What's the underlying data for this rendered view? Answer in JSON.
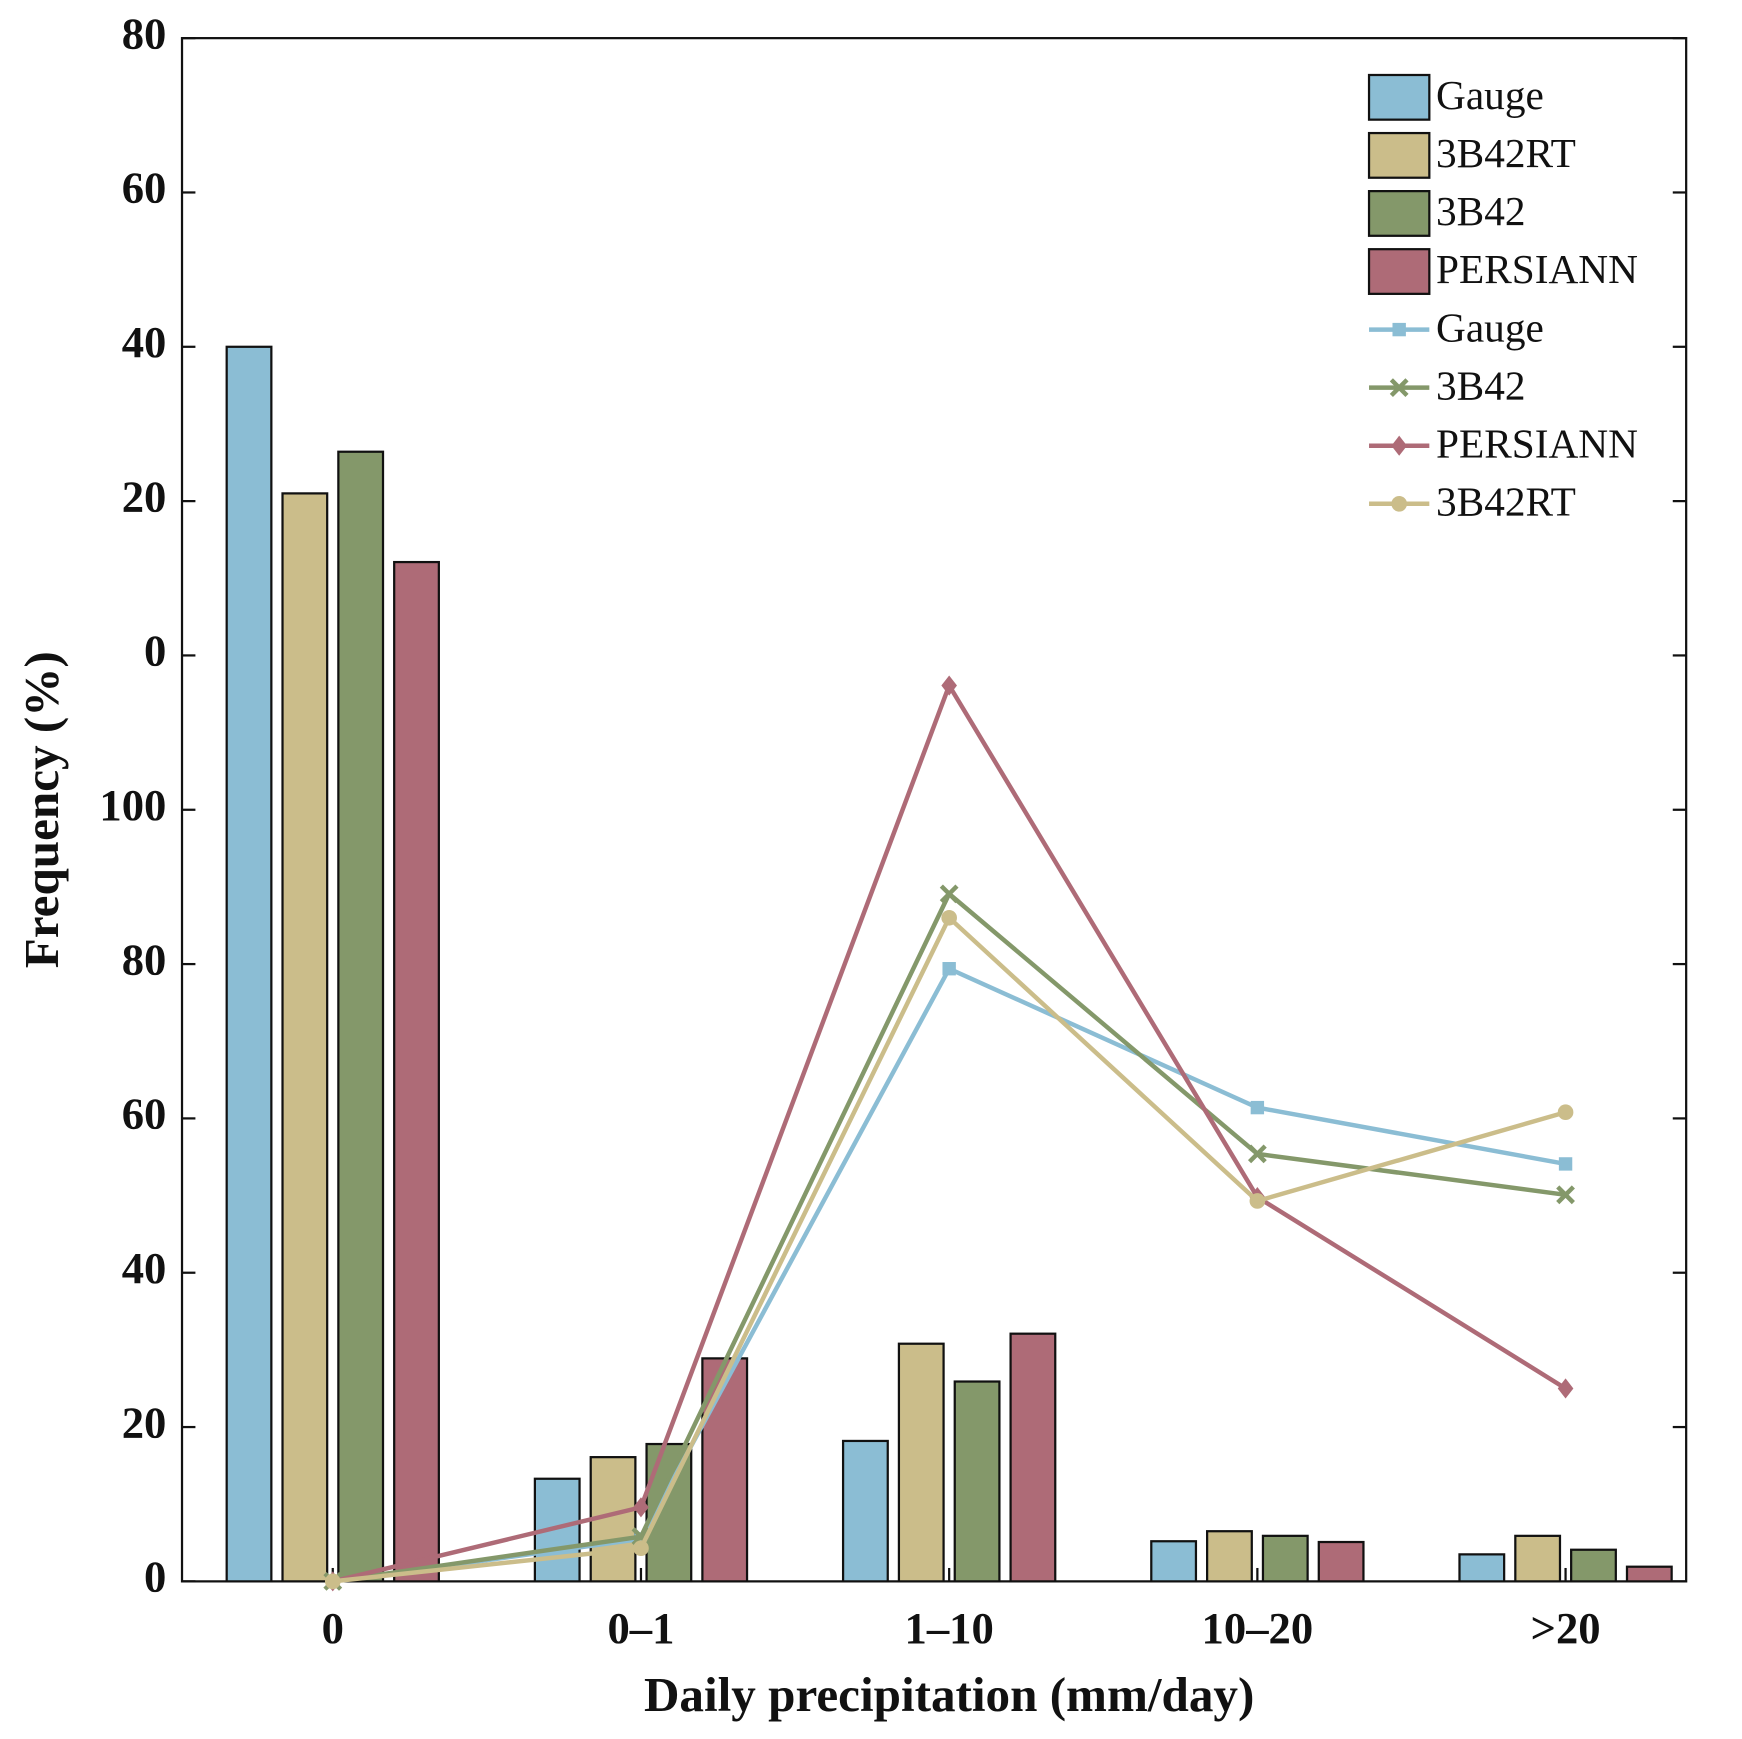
{
  "chart_data": {
    "type": "bar",
    "x_label": "Daily precipitation (mm/day)",
    "y_label": "Frequency (%)",
    "categories": [
      "0",
      "0–1",
      "1–10",
      "10–20",
      ">20"
    ],
    "ylim": [
      0,
      200
    ],
    "yticks": [
      0,
      20,
      40,
      60,
      80,
      100,
      {
        "value": 120,
        "label": "0"
      },
      {
        "value": 140,
        "label": "20"
      },
      {
        "value": 160,
        "label": "40"
      },
      {
        "value": 180,
        "label": "60"
      },
      {
        "value": 200,
        "label": "80"
      }
    ],
    "series": [
      {
        "name": "Gauge",
        "type": "bar",
        "color": "#8bbdd4",
        "values": [
          160,
          13.3,
          18.2,
          5.2,
          3.5
        ]
      },
      {
        "name": "3B42RT",
        "type": "bar",
        "color": "#cbbd8a",
        "values": [
          141,
          16.1,
          30.8,
          6.5,
          5.9
        ]
      },
      {
        "name": "3B42",
        "type": "bar",
        "color": "#84986a",
        "values": [
          146.4,
          17.8,
          25.9,
          5.9,
          4.1
        ]
      },
      {
        "name": "PERSIANN",
        "type": "bar",
        "color": "#ae6b77",
        "values": [
          132.1,
          28.9,
          32.1,
          5.1,
          1.9
        ]
      },
      {
        "name": "Gauge",
        "type": "line",
        "marker": "square",
        "color": "#8bbdd4",
        "values": [
          0,
          5.5,
          79.4,
          61.4,
          54.1
        ]
      },
      {
        "name": "3B42",
        "type": "line",
        "marker": "x",
        "color": "#84986a",
        "values": [
          0,
          5.8,
          89.1,
          55.4,
          50.1
        ]
      },
      {
        "name": "PERSIANN",
        "type": "line",
        "marker": "diamond",
        "color": "#ae6b77",
        "values": [
          0,
          9.6,
          116.1,
          49.8,
          25.0
        ]
      },
      {
        "name": "3B42RT",
        "type": "line",
        "marker": "circle",
        "color": "#cbbd8a",
        "values": [
          0,
          4.3,
          86.0,
          49.3,
          60.8
        ]
      }
    ]
  }
}
